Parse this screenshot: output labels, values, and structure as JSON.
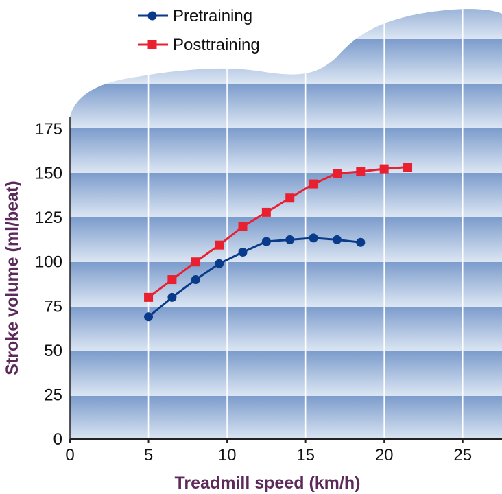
{
  "chart_data": {
    "type": "line",
    "title": "",
    "xlabel": "Treadmill speed (km/h)",
    "ylabel": "Stroke volume (ml/beat)",
    "xlim": [
      0,
      27.5
    ],
    "ylim": [
      0,
      175
    ],
    "x_ticks": [
      0,
      5,
      10,
      15,
      20,
      25
    ],
    "y_ticks": [
      0,
      25,
      50,
      75,
      100,
      125,
      150,
      175
    ],
    "grid": true,
    "legend_position": "top-left",
    "series": [
      {
        "name": "Pretraining",
        "color": "#0a3a8a",
        "marker": "circle",
        "x": [
          5,
          6.5,
          8,
          9.5,
          11,
          12.5,
          14,
          15.5,
          17,
          18.5
        ],
        "y": [
          69,
          80,
          90,
          99,
          105.5,
          111.5,
          112.5,
          113.5,
          112.5,
          111
        ]
      },
      {
        "name": "Posttraining",
        "color": "#e8202f",
        "marker": "square",
        "x": [
          5,
          6.5,
          8,
          9.5,
          11,
          12.5,
          14,
          15.5,
          17,
          18.5,
          20,
          21.5
        ],
        "y": [
          80,
          90,
          100,
          109.5,
          120,
          128,
          136,
          144,
          150,
          151,
          152.5,
          153.5
        ]
      }
    ]
  }
}
